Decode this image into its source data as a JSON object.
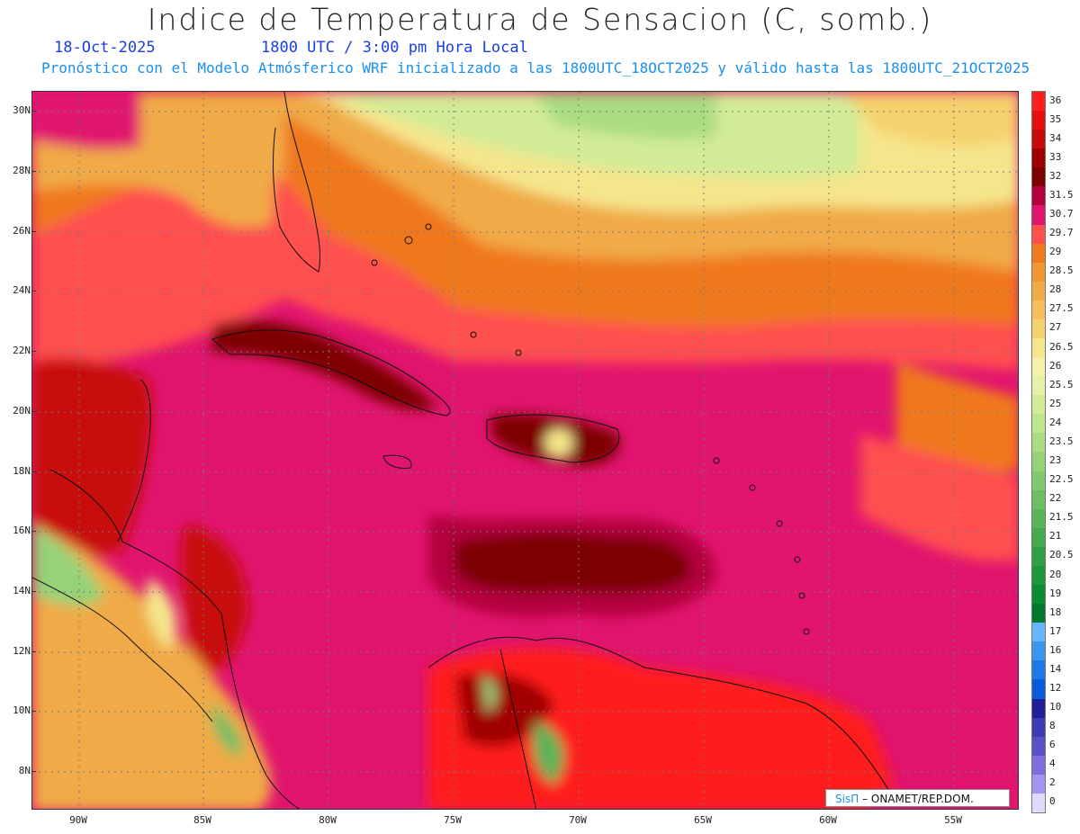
{
  "header": {
    "title": "Indice de Temperatura de Sensacion (C, somb.)",
    "date": "18-Oct-2025",
    "time": "1800 UTC / 3:00 pm Hora Local",
    "subtitle": "Pronóstico con el Modelo Atmósferico WRF inicializado a las 1800UTC_18OCT2025 y válido hasta las  1800UTC_21OCT2025"
  },
  "map": {
    "lat_labels": [
      "30N",
      "28N",
      "26N",
      "24N",
      "22N",
      "20N",
      "18N",
      "16N",
      "14N",
      "12N",
      "10N",
      "8N"
    ],
    "lon_labels": [
      "90W",
      "85W",
      "80W",
      "75W",
      "70W",
      "65W",
      "60W",
      "55W"
    ]
  },
  "colorbar": {
    "labels": [
      "36",
      "35",
      "34",
      "33",
      "32",
      "31.5",
      "30.7",
      "29.7",
      "29",
      "28.5",
      "28",
      "27.5",
      "27",
      "26.5",
      "26",
      "25.5",
      "25",
      "24",
      "23.5",
      "23",
      "22.5",
      "22",
      "21.5",
      "21",
      "20.5",
      "20",
      "19",
      "18",
      "17",
      "16",
      "14",
      "12",
      "10",
      "8",
      "6",
      "4",
      "2",
      "0"
    ],
    "colors": [
      "#ff1e1e",
      "#e60f0f",
      "#c80a0a",
      "#a00000",
      "#7d0000",
      "#b4003c",
      "#e1146e",
      "#ff5050",
      "#f0781e",
      "#f09632",
      "#f0aa46",
      "#f5be5a",
      "#f5d26e",
      "#f5e68c",
      "#f5f0aa",
      "#e6f0aa",
      "#d2eb96",
      "#bee68c",
      "#aadc82",
      "#96d278",
      "#82c86e",
      "#6ebe64",
      "#5ab45a",
      "#46aa50",
      "#329f46",
      "#1e963c",
      "#0a8c32",
      "#00782d",
      "#64b4ff",
      "#3c96f0",
      "#1e78e6",
      "#0a5adc",
      "#1e1e96",
      "#3c3cb4",
      "#5a50c8",
      "#7d6edc",
      "#a096f0",
      "#dcdcfa"
    ]
  },
  "credit": {
    "brand": "SisΠ",
    "text": "– ONAMET/REP.DOM."
  }
}
